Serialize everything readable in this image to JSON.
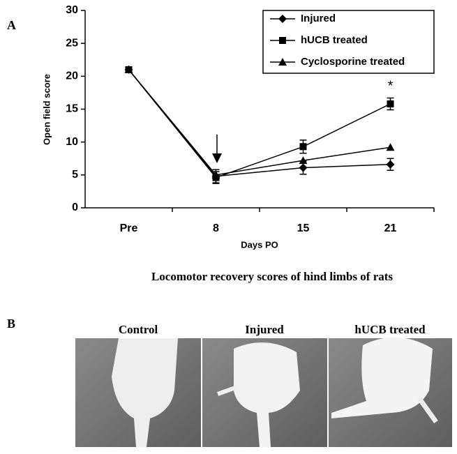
{
  "panel_a_label": "A",
  "chart_data": {
    "type": "line",
    "categories": [
      "Pre",
      "8",
      "15",
      "21"
    ],
    "x_label": "Days PO",
    "y_label": "Open field score",
    "ylim": [
      0,
      30
    ],
    "yticks": [
      0,
      5,
      10,
      15,
      20,
      25,
      30
    ],
    "legend": "top-right",
    "series": [
      {
        "name": "Injured",
        "color": "#000000",
        "marker": "diamond",
        "values": [
          21,
          4.8,
          6.1,
          6.6
        ],
        "errors": [
          null,
          1.0,
          1.0,
          0.9
        ]
      },
      {
        "name": "hUCB treated",
        "color": "#000000",
        "marker": "square",
        "values": [
          21,
          4.6,
          9.3,
          15.8
        ],
        "errors": [
          null,
          0.9,
          1.0,
          0.9
        ]
      },
      {
        "name": "Cyclosporine treated",
        "color": "#000000",
        "marker": "triangle",
        "values": [
          21,
          5.0,
          7.2,
          9.2
        ]
      }
    ],
    "annotations": [
      "*"
    ]
  },
  "caption": "Locomotor recovery scores  of hind limbs of rats",
  "panel_b": {
    "label": "B",
    "images": [
      "Control",
      "Injured",
      "hUCB treated"
    ]
  }
}
